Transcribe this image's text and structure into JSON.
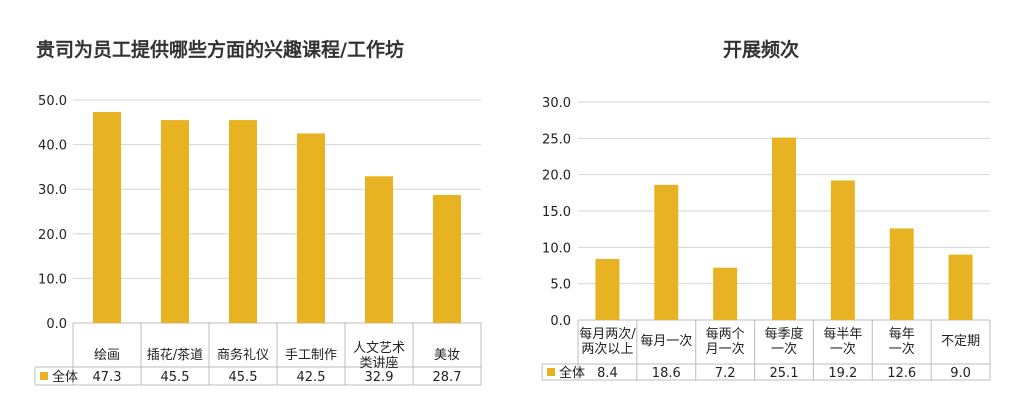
{
  "chart_data": [
    {
      "type": "bar",
      "title": "贵司为员工提供哪些方面的兴趣课程/工作坊",
      "categories": [
        [
          "绘画"
        ],
        [
          "插花/茶道"
        ],
        [
          "商务礼仪"
        ],
        [
          "手工制作"
        ],
        [
          "人文艺术",
          "类讲座"
        ],
        [
          "美妆"
        ]
      ],
      "series": [
        {
          "name": "全体",
          "values": [
            47.3,
            45.5,
            45.5,
            42.5,
            32.9,
            28.7
          ]
        }
      ],
      "value_labels": [
        "47.3",
        "45.5",
        "45.5",
        "42.5",
        "32.9",
        "28.7"
      ],
      "yticks": [
        "0.0",
        "10.0",
        "20.0",
        "30.0",
        "40.0",
        "50.0"
      ],
      "ylim": [
        0,
        50
      ],
      "color": "#E8B323",
      "xlabel": "",
      "ylabel": ""
    },
    {
      "type": "bar",
      "title": "开展频次",
      "categories": [
        [
          "每月两次/",
          "两次以上"
        ],
        [
          "每月一次"
        ],
        [
          "每两个",
          "月一次"
        ],
        [
          "每季度",
          "一次"
        ],
        [
          "每半年",
          "一次"
        ],
        [
          "每年",
          "一次"
        ],
        [
          "不定期"
        ]
      ],
      "series": [
        {
          "name": "全体",
          "values": [
            8.4,
            18.6,
            7.2,
            25.1,
            19.2,
            12.6,
            9.0
          ]
        }
      ],
      "value_labels": [
        "8.4",
        "18.6",
        "7.2",
        "25.1",
        "19.2",
        "12.6",
        "9.0"
      ],
      "yticks": [
        "0.0",
        "5.0",
        "10.0",
        "15.0",
        "20.0",
        "25.0",
        "30.0"
      ],
      "ylim": [
        0,
        30
      ],
      "color": "#E8B323",
      "xlabel": "",
      "ylabel": ""
    }
  ]
}
